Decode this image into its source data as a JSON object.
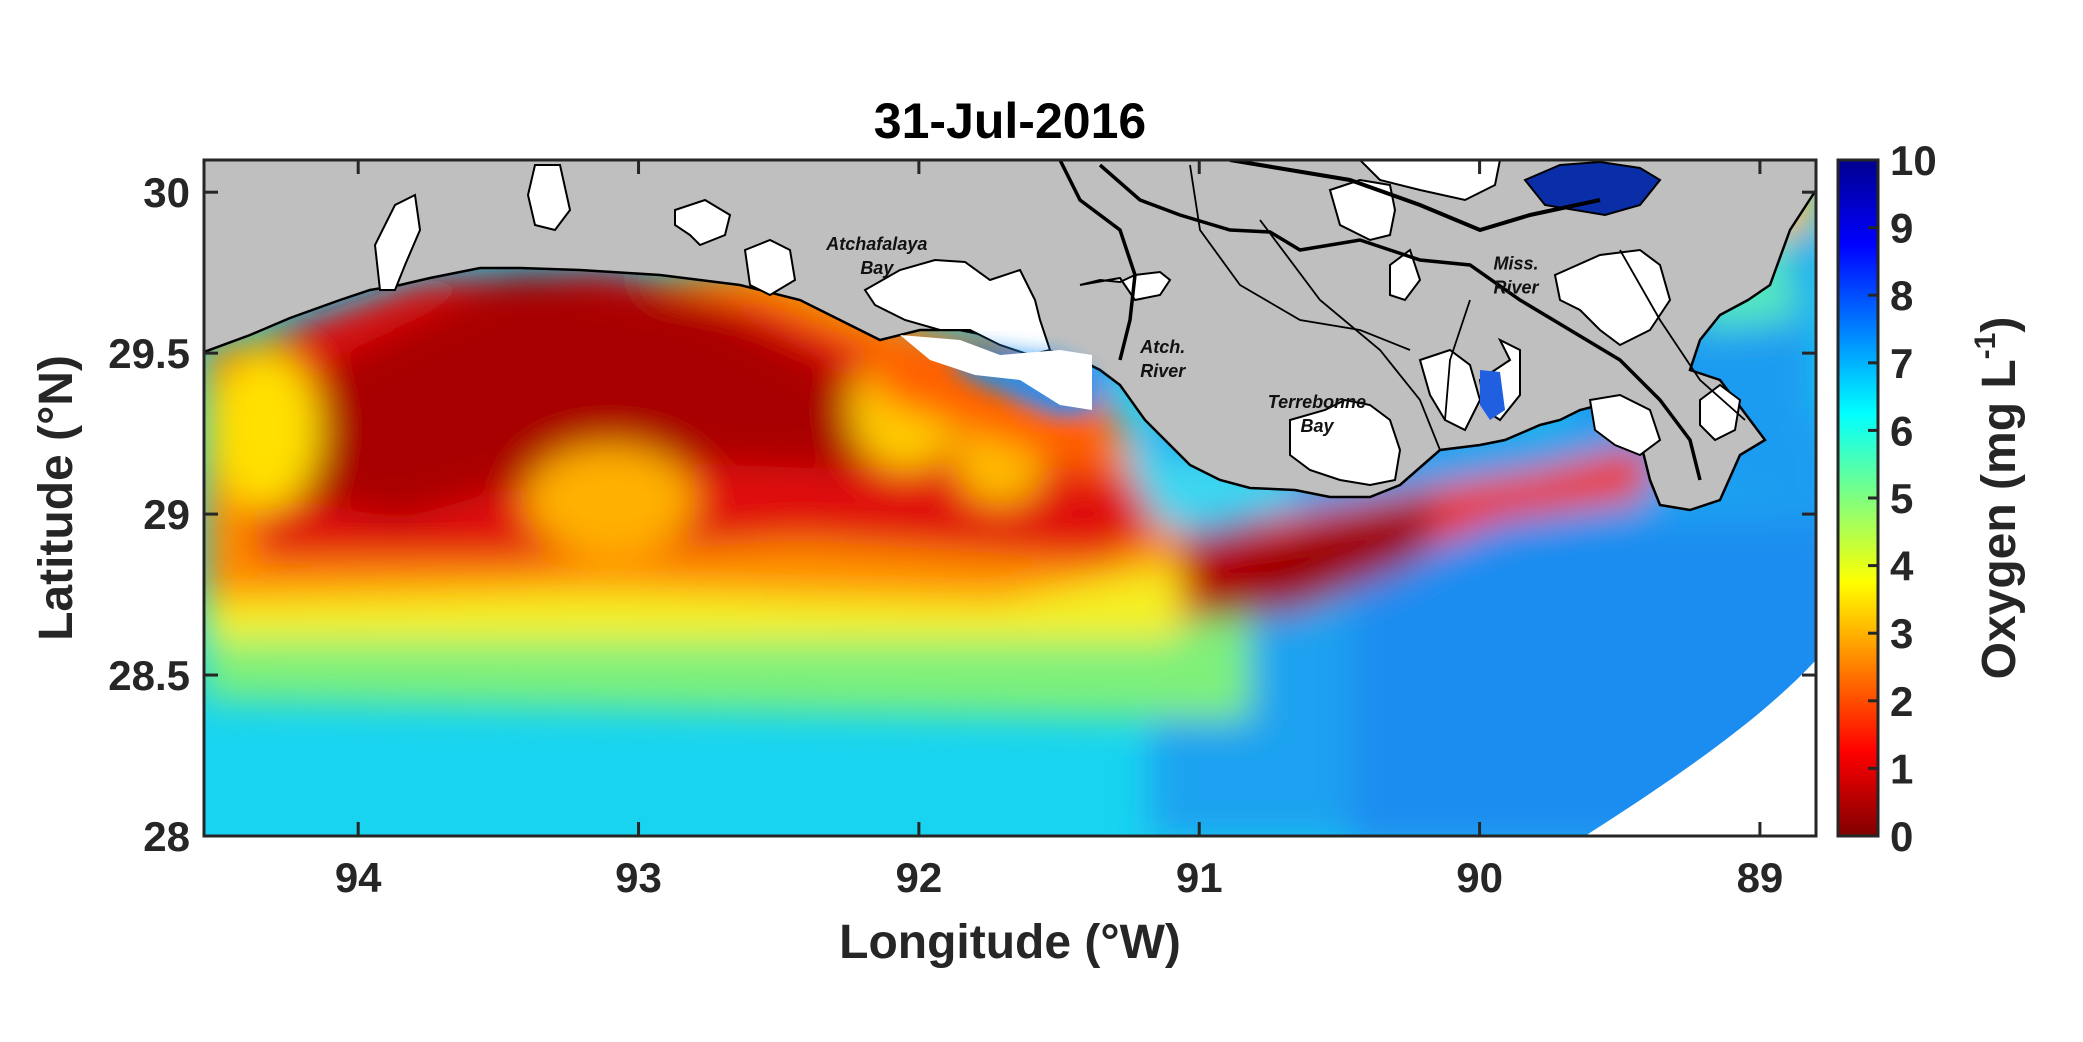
{
  "chart_data": {
    "type": "heatmap",
    "title": "31-Jul-2016",
    "xlabel": "Longitude (°W)",
    "ylabel": "Latitude (°N)",
    "xlim": [
      94.55,
      88.8
    ],
    "ylim": [
      28,
      30.1
    ],
    "x_ticks": [
      "94",
      "93",
      "92",
      "91",
      "90",
      "89"
    ],
    "x_tick_values": [
      94,
      93,
      92,
      91,
      90,
      89
    ],
    "y_ticks": [
      "28",
      "28.5",
      "29",
      "29.5",
      "30"
    ],
    "y_tick_values": [
      28,
      28.5,
      29,
      29.5,
      30
    ],
    "colorbar": {
      "label": "Oxygen (mg L",
      "label_superscript": "-1",
      "label_suffix": ")",
      "min": 0,
      "max": 10,
      "ticks": [
        "0",
        "1",
        "2",
        "3",
        "4",
        "5",
        "6",
        "7",
        "8",
        "9",
        "10"
      ],
      "tick_values": [
        0,
        1,
        2,
        3,
        4,
        5,
        6,
        7,
        8,
        9,
        10
      ],
      "colormap": "jet"
    },
    "place_labels": [
      {
        "lines": [
          "Atchafalaya",
          "Bay"
        ],
        "lon": 92.15,
        "lat": 29.82
      },
      {
        "lines": [
          "Atch.",
          "River"
        ],
        "lon": 91.13,
        "lat": 29.5
      },
      {
        "lines": [
          "Terrebonne",
          "Bay"
        ],
        "lon": 90.58,
        "lat": 29.33
      },
      {
        "lines": [
          "Miss.",
          "River"
        ],
        "lon": 89.87,
        "lat": 29.76
      }
    ],
    "land_color": "#bfbfbf",
    "water_mask_color": "#ffffff"
  }
}
